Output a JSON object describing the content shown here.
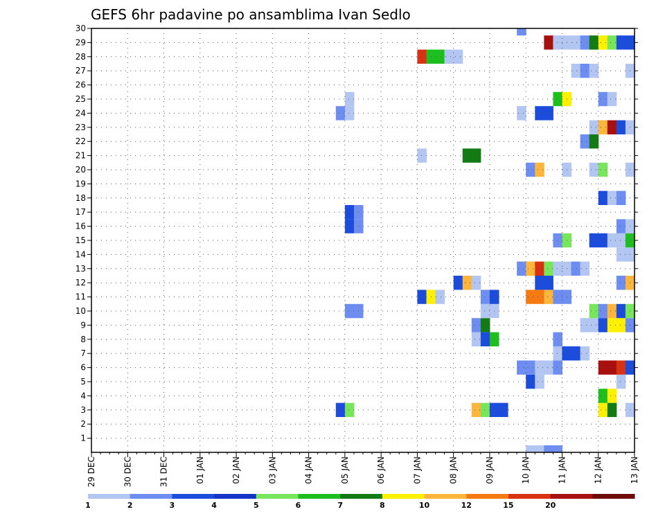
{
  "chart_data": {
    "type": "heatmap",
    "title": "GEFS 6hr padavine po ansamblima Ivan Sedlo",
    "grid": true,
    "x_ticks": [
      "29 DEC",
      "30 DEC",
      "31 DEC",
      "01 JAN",
      "02 JAN",
      "03 JAN",
      "04 JAN",
      "05 JAN",
      "06 JAN",
      "07 JAN",
      "08 JAN",
      "09 JAN",
      "10 JAN",
      "11 JAN",
      "12 JAN",
      "13 JAN"
    ],
    "y_ticks": [
      "1",
      "2",
      "3",
      "4",
      "5",
      "6",
      "7",
      "8",
      "9",
      "10",
      "11",
      "12",
      "13",
      "14",
      "15",
      "16",
      "17",
      "18",
      "19",
      "20",
      "21",
      "22",
      "23",
      "24",
      "25",
      "26",
      "27",
      "28",
      "29",
      "30"
    ],
    "ylim": [
      0,
      30
    ],
    "colorbar": {
      "labels": [
        "1",
        "2",
        "3",
        "4",
        "5",
        "6",
        "7",
        "8",
        "10",
        "12",
        "15",
        "20"
      ],
      "colors": [
        "#b3c6f2",
        "#6d8ef0",
        "#1c4cdb",
        "#1534c8",
        "#77e65b",
        "#1fbe1f",
        "#137b13",
        "#fff000",
        "#fdb53b",
        "#f57a12",
        "#d93212",
        "#a8100f",
        "#6e0a0a"
      ]
    },
    "cells": [
      {
        "x": "10 JAN 00",
        "member": 0,
        "value": 1
      },
      {
        "x": "10 JAN 06",
        "member": 0,
        "value": 1
      },
      {
        "x": "10 JAN 12",
        "member": 0,
        "value": 2
      },
      {
        "x": "10 JAN 18",
        "member": 0,
        "value": 2
      },
      {
        "x": "04 JAN 18",
        "member": 3,
        "value": 3
      },
      {
        "x": "05 JAN 00",
        "member": 3,
        "value": 5
      },
      {
        "x": "08 JAN 12",
        "member": 3,
        "value": 10
      },
      {
        "x": "08 JAN 18",
        "member": 3,
        "value": 5
      },
      {
        "x": "09 JAN 00",
        "member": 3,
        "value": 3
      },
      {
        "x": "09 JAN 06",
        "member": 3,
        "value": 3
      },
      {
        "x": "12 JAN 00",
        "member": 3,
        "value": 8
      },
      {
        "x": "12 JAN 06",
        "member": 3,
        "value": 7
      },
      {
        "x": "12 JAN 18",
        "member": 3,
        "value": 1
      },
      {
        "x": "12 JAN 00",
        "member": 4,
        "value": 6
      },
      {
        "x": "12 JAN 06",
        "member": 4,
        "value": 8
      },
      {
        "x": "10 JAN 00",
        "member": 5,
        "value": 3
      },
      {
        "x": "10 JAN 06",
        "member": 5,
        "value": 1
      },
      {
        "x": "12 JAN 12",
        "member": 5,
        "value": 1
      },
      {
        "x": "09 JAN 18",
        "member": 6,
        "value": 2
      },
      {
        "x": "10 JAN 00",
        "member": 6,
        "value": 2
      },
      {
        "x": "10 JAN 06",
        "member": 6,
        "value": 1
      },
      {
        "x": "10 JAN 12",
        "member": 6,
        "value": 1
      },
      {
        "x": "10 JAN 18",
        "member": 6,
        "value": 2
      },
      {
        "x": "12 JAN 00",
        "member": 6,
        "value": 20
      },
      {
        "x": "12 JAN 06",
        "member": 6,
        "value": 20
      },
      {
        "x": "12 JAN 12",
        "member": 6,
        "value": 15
      },
      {
        "x": "12 JAN 18",
        "member": 6,
        "value": 3
      },
      {
        "x": "10 JAN 18",
        "member": 7,
        "value": 1
      },
      {
        "x": "11 JAN 00",
        "member": 7,
        "value": 3
      },
      {
        "x": "11 JAN 06",
        "member": 7,
        "value": 3
      },
      {
        "x": "11 JAN 12",
        "member": 7,
        "value": 1
      },
      {
        "x": "08 JAN 12",
        "member": 8,
        "value": 1
      },
      {
        "x": "08 JAN 18",
        "member": 8,
        "value": 3
      },
      {
        "x": "09 JAN 00",
        "member": 8,
        "value": 6
      },
      {
        "x": "10 JAN 18",
        "member": 8,
        "value": 2
      },
      {
        "x": "08 JAN 12",
        "member": 9,
        "value": 2
      },
      {
        "x": "08 JAN 18",
        "member": 9,
        "value": 7
      },
      {
        "x": "11 JAN 12",
        "member": 9,
        "value": 1
      },
      {
        "x": "11 JAN 18",
        "member": 9,
        "value": 1
      },
      {
        "x": "12 JAN 00",
        "member": 9,
        "value": 3
      },
      {
        "x": "12 JAN 06",
        "member": 9,
        "value": 8
      },
      {
        "x": "12 JAN 12",
        "member": 9,
        "value": 8
      },
      {
        "x": "12 JAN 18",
        "member": 9,
        "value": 2
      },
      {
        "x": "05 JAN 00",
        "member": 10,
        "value": 2
      },
      {
        "x": "05 JAN 06",
        "member": 10,
        "value": 2
      },
      {
        "x": "08 JAN 18",
        "member": 10,
        "value": 1
      },
      {
        "x": "09 JAN 00",
        "member": 10,
        "value": 1
      },
      {
        "x": "11 JAN 18",
        "member": 10,
        "value": 5
      },
      {
        "x": "12 JAN 00",
        "member": 10,
        "value": 2
      },
      {
        "x": "12 JAN 06",
        "member": 10,
        "value": 10
      },
      {
        "x": "12 JAN 12",
        "member": 10,
        "value": 3
      },
      {
        "x": "12 JAN 18",
        "member": 10,
        "value": 5
      },
      {
        "x": "07 JAN 00",
        "member": 11,
        "value": 3
      },
      {
        "x": "07 JAN 06",
        "member": 11,
        "value": 8
      },
      {
        "x": "07 JAN 12",
        "member": 11,
        "value": 1
      },
      {
        "x": "08 JAN 18",
        "member": 11,
        "value": 2
      },
      {
        "x": "09 JAN 00",
        "member": 11,
        "value": 3
      },
      {
        "x": "10 JAN 00",
        "member": 11,
        "value": 12
      },
      {
        "x": "10 JAN 06",
        "member": 11,
        "value": 12
      },
      {
        "x": "10 JAN 12",
        "member": 11,
        "value": 10
      },
      {
        "x": "10 JAN 18",
        "member": 11,
        "value": 2
      },
      {
        "x": "11 JAN 00",
        "member": 11,
        "value": 2
      },
      {
        "x": "08 JAN 00",
        "member": 12,
        "value": 3
      },
      {
        "x": "08 JAN 06",
        "member": 12,
        "value": 10
      },
      {
        "x": "08 JAN 12",
        "member": 12,
        "value": 1
      },
      {
        "x": "10 JAN 06",
        "member": 12,
        "value": 3
      },
      {
        "x": "10 JAN 12",
        "member": 12,
        "value": 3
      },
      {
        "x": "12 JAN 12",
        "member": 12,
        "value": 2
      },
      {
        "x": "12 JAN 18",
        "member": 12,
        "value": 10
      },
      {
        "x": "09 JAN 18",
        "member": 13,
        "value": 2
      },
      {
        "x": "10 JAN 00",
        "member": 13,
        "value": 10
      },
      {
        "x": "10 JAN 06",
        "member": 13,
        "value": 15
      },
      {
        "x": "10 JAN 12",
        "member": 13,
        "value": 5
      },
      {
        "x": "10 JAN 18",
        "member": 13,
        "value": 1
      },
      {
        "x": "11 JAN 00",
        "member": 13,
        "value": 1
      },
      {
        "x": "11 JAN 06",
        "member": 13,
        "value": 2
      },
      {
        "x": "11 JAN 12",
        "member": 13,
        "value": 1
      },
      {
        "x": "12 JAN 12",
        "member": 14,
        "value": 1
      },
      {
        "x": "12 JAN 18",
        "member": 14,
        "value": 1
      },
      {
        "x": "10 JAN 18",
        "member": 15,
        "value": 2
      },
      {
        "x": "11 JAN 00",
        "member": 15,
        "value": 5
      },
      {
        "x": "11 JAN 18",
        "member": 15,
        "value": 3
      },
      {
        "x": "12 JAN 00",
        "member": 15,
        "value": 3
      },
      {
        "x": "12 JAN 06",
        "member": 15,
        "value": 1
      },
      {
        "x": "12 JAN 12",
        "member": 15,
        "value": 1
      },
      {
        "x": "12 JAN 18",
        "member": 15,
        "value": 6
      },
      {
        "x": "05 JAN 00",
        "member": 16,
        "value": 3
      },
      {
        "x": "05 JAN 06",
        "member": 16,
        "value": 2
      },
      {
        "x": "12 JAN 12",
        "member": 16,
        "value": 2
      },
      {
        "x": "12 JAN 18",
        "member": 16,
        "value": 1
      },
      {
        "x": "05 JAN 00",
        "member": 17,
        "value": 3
      },
      {
        "x": "05 JAN 06",
        "member": 17,
        "value": 2
      },
      {
        "x": "12 JAN 00",
        "member": 18,
        "value": 3
      },
      {
        "x": "12 JAN 06",
        "member": 18,
        "value": 1
      },
      {
        "x": "12 JAN 12",
        "member": 18,
        "value": 2
      },
      {
        "x": "10 JAN 00",
        "member": 20,
        "value": 2
      },
      {
        "x": "10 JAN 06",
        "member": 20,
        "value": 10
      },
      {
        "x": "11 JAN 00",
        "member": 20,
        "value": 1
      },
      {
        "x": "11 JAN 18",
        "member": 20,
        "value": 1
      },
      {
        "x": "12 JAN 00",
        "member": 20,
        "value": 5
      },
      {
        "x": "12 JAN 18",
        "member": 20,
        "value": 1
      },
      {
        "x": "07 JAN 00",
        "member": 21,
        "value": 1
      },
      {
        "x": "08 JAN 06",
        "member": 21,
        "value": 7
      },
      {
        "x": "08 JAN 12",
        "member": 21,
        "value": 7
      },
      {
        "x": "11 JAN 12",
        "member": 22,
        "value": 2
      },
      {
        "x": "11 JAN 18",
        "member": 22,
        "value": 7
      },
      {
        "x": "11 JAN 18",
        "member": 23,
        "value": 1
      },
      {
        "x": "12 JAN 00",
        "member": 23,
        "value": 10
      },
      {
        "x": "12 JAN 06",
        "member": 23,
        "value": 20
      },
      {
        "x": "12 JAN 12",
        "member": 23,
        "value": 3
      },
      {
        "x": "12 JAN 18",
        "member": 23,
        "value": 1
      },
      {
        "x": "04 JAN 18",
        "member": 24,
        "value": 2
      },
      {
        "x": "05 JAN 00",
        "member": 24,
        "value": 1
      },
      {
        "x": "09 JAN 18",
        "member": 24,
        "value": 1
      },
      {
        "x": "10 JAN 06",
        "member": 24,
        "value": 3
      },
      {
        "x": "10 JAN 12",
        "member": 24,
        "value": 3
      },
      {
        "x": "05 JAN 00",
        "member": 25,
        "value": 1
      },
      {
        "x": "10 JAN 18",
        "member": 25,
        "value": 6
      },
      {
        "x": "11 JAN 00",
        "member": 25,
        "value": 8
      },
      {
        "x": "12 JAN 00",
        "member": 25,
        "value": 2
      },
      {
        "x": "12 JAN 06",
        "member": 25,
        "value": 1
      },
      {
        "x": "11 JAN 06",
        "member": 27,
        "value": 1
      },
      {
        "x": "11 JAN 12",
        "member": 27,
        "value": 2
      },
      {
        "x": "11 JAN 18",
        "member": 27,
        "value": 1
      },
      {
        "x": "12 JAN 18",
        "member": 27,
        "value": 1
      },
      {
        "x": "07 JAN 00",
        "member": 28,
        "value": 15
      },
      {
        "x": "07 JAN 06",
        "member": 28,
        "value": 6
      },
      {
        "x": "07 JAN 12",
        "member": 28,
        "value": 6
      },
      {
        "x": "07 JAN 18",
        "member": 28,
        "value": 1
      },
      {
        "x": "08 JAN 00",
        "member": 28,
        "value": 1
      },
      {
        "x": "10 JAN 12",
        "member": 29,
        "value": 20
      },
      {
        "x": "10 JAN 18",
        "member": 29,
        "value": 1
      },
      {
        "x": "11 JAN 00",
        "member": 29,
        "value": 1
      },
      {
        "x": "11 JAN 06",
        "member": 29,
        "value": 1
      },
      {
        "x": "11 JAN 12",
        "member": 29,
        "value": 2
      },
      {
        "x": "11 JAN 18",
        "member": 29,
        "value": 7
      },
      {
        "x": "12 JAN 00",
        "member": 29,
        "value": 8
      },
      {
        "x": "12 JAN 06",
        "member": 29,
        "value": 5
      },
      {
        "x": "12 JAN 12",
        "member": 29,
        "value": 3
      },
      {
        "x": "12 JAN 18",
        "member": 29,
        "value": 3
      },
      {
        "x": "09 JAN 18",
        "member": 30,
        "value": 2
      }
    ]
  }
}
